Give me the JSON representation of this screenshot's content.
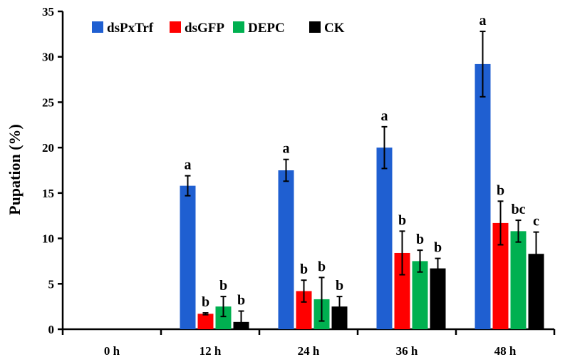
{
  "chart_data": {
    "type": "bar",
    "title": "",
    "xlabel": "",
    "ylabel": "Pupation (%)",
    "ylim": [
      0,
      35
    ],
    "yticks": [
      0,
      5,
      10,
      15,
      20,
      25,
      30,
      35
    ],
    "grid": false,
    "legend_position": "top-left",
    "categories": [
      "0 h",
      "12 h",
      "24 h",
      "36 h",
      "48 h"
    ],
    "series": [
      {
        "name": "dsPxTrf",
        "color": "#1f5fd1",
        "values": [
          0,
          15.8,
          17.5,
          20.0,
          29.2
        ],
        "errors": [
          0,
          1.1,
          1.2,
          2.3,
          3.6
        ],
        "significance": [
          "",
          "a",
          "a",
          "a",
          "a"
        ]
      },
      {
        "name": "dsGFP",
        "color": "#ff0000",
        "values": [
          0,
          1.7,
          4.2,
          8.4,
          11.7
        ],
        "errors": [
          0,
          0.1,
          1.2,
          2.4,
          2.4
        ],
        "significance": [
          "",
          "b",
          "b",
          "b",
          "b"
        ]
      },
      {
        "name": "DEPC",
        "color": "#00b050",
        "values": [
          0,
          2.5,
          3.3,
          7.5,
          10.8
        ],
        "errors": [
          0,
          1.1,
          2.4,
          1.2,
          1.2
        ],
        "significance": [
          "",
          "b",
          "b",
          "b",
          "bc"
        ]
      },
      {
        "name": "CK",
        "color": "#000000",
        "values": [
          0,
          0.8,
          2.5,
          6.7,
          8.3
        ],
        "errors": [
          0,
          1.2,
          1.1,
          1.1,
          2.4
        ],
        "significance": [
          "",
          "b",
          "b",
          "b",
          "c"
        ]
      }
    ]
  }
}
